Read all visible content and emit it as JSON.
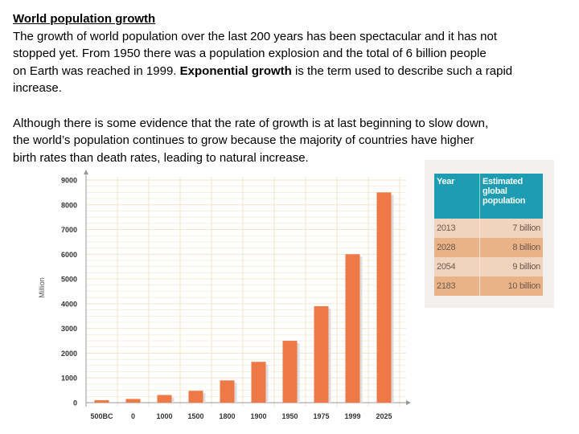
{
  "heading": "World population growth",
  "paragraph1": {
    "lines": [
      "The growth of world population over the last 200 years has been spectacular and it has not",
      "stopped yet. From 1950 there was a population explosion and the total of 6 billion people",
      "on Earth was reached in 1999. "
    ],
    "bold_term": "Exponential growth",
    "line3_tail": " is the term used to describe such a rapid",
    "line4": "increase."
  },
  "paragraph2": {
    "lines": [
      "Although there is some evidence that the rate of growth is at last beginning to slow down,",
      "the world’s population continues to grow because the majority of countries have higher",
      "birth rates than death rates, leading to natural increase."
    ]
  },
  "chart_data": {
    "type": "bar",
    "title": "",
    "xlabel": "",
    "ylabel": "Million",
    "categories": [
      "500BC",
      "0",
      "1000",
      "1500",
      "1800",
      "1900",
      "1950",
      "1975",
      "1999",
      "2025"
    ],
    "values": [
      100,
      150,
      310,
      480,
      900,
      1650,
      2500,
      3900,
      6000,
      8500
    ],
    "ylim": [
      0,
      9000
    ],
    "yticks": [
      0,
      1000,
      2000,
      3000,
      4000,
      5000,
      6000,
      7000,
      8000,
      9000
    ],
    "grid": true,
    "bar_color": "#ee7846",
    "grid_color": "#f0e6c8"
  },
  "table": {
    "headers": [
      "Year",
      "Estimated global population"
    ],
    "rows": [
      [
        "2013",
        "7 billion"
      ],
      [
        "2028",
        "8 billion"
      ],
      [
        "2054",
        "9 billion"
      ],
      [
        "2183",
        "10 billion"
      ]
    ],
    "header_color": "#1e9db2"
  }
}
